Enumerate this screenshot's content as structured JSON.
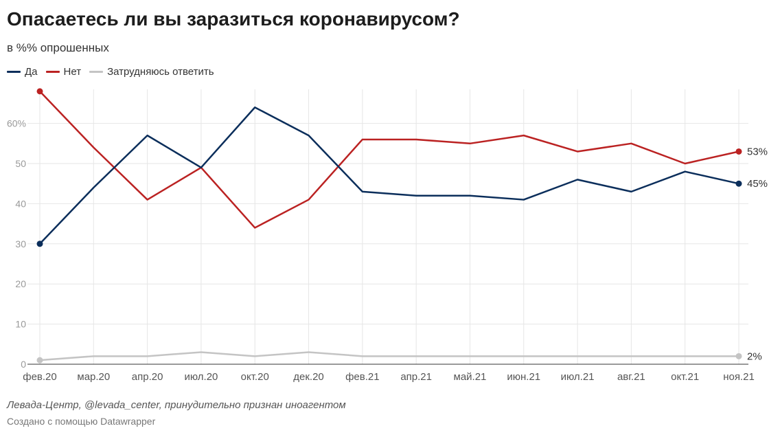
{
  "title": "Опасаетесь ли вы заразиться коронавирусом?",
  "subtitle": "в %% опрошенных",
  "footer": {
    "source": "Левада-Центр, @levada_center, принудительно признан иноагентом",
    "credit": "Создано с помощью Datawrapper"
  },
  "chart_data": {
    "type": "line",
    "title": "Опасаетесь ли вы заразиться коронавирусом?",
    "subtitle": "в %% опрошенных",
    "xlabel": "",
    "ylabel": "",
    "ylim": [
      0,
      68
    ],
    "y_ticks": [
      0,
      10,
      20,
      30,
      40,
      50,
      60
    ],
    "y_tick_labels": [
      "0",
      "10",
      "20",
      "30",
      "40",
      "50",
      "60%"
    ],
    "grid": true,
    "legend_position": "top-left",
    "categories": [
      "фев.20",
      "мар.20",
      "апр.20",
      "июл.20",
      "окт.20",
      "дек.20",
      "фев.21",
      "апр.21",
      "май.21",
      "июн.21",
      "июл.21",
      "авг.21",
      "окт.21",
      "ноя.21"
    ],
    "series": [
      {
        "name": "Да",
        "color": "#0b2e5b",
        "values": [
          30,
          44,
          57,
          49,
          64,
          57,
          43,
          42,
          42,
          41,
          46,
          43,
          48,
          45
        ],
        "end_label": "45%"
      },
      {
        "name": "Нет",
        "color": "#bb2222",
        "values": [
          68,
          54,
          41,
          49,
          34,
          41,
          56,
          56,
          55,
          57,
          53,
          55,
          50,
          53
        ],
        "end_label": "53%"
      },
      {
        "name": "Затрудняюсь ответить",
        "color": "#c4c4c4",
        "values": [
          1,
          2,
          2,
          3,
          2,
          3,
          2,
          2,
          2,
          2,
          2,
          2,
          2,
          2
        ],
        "end_label": "2%"
      }
    ]
  }
}
